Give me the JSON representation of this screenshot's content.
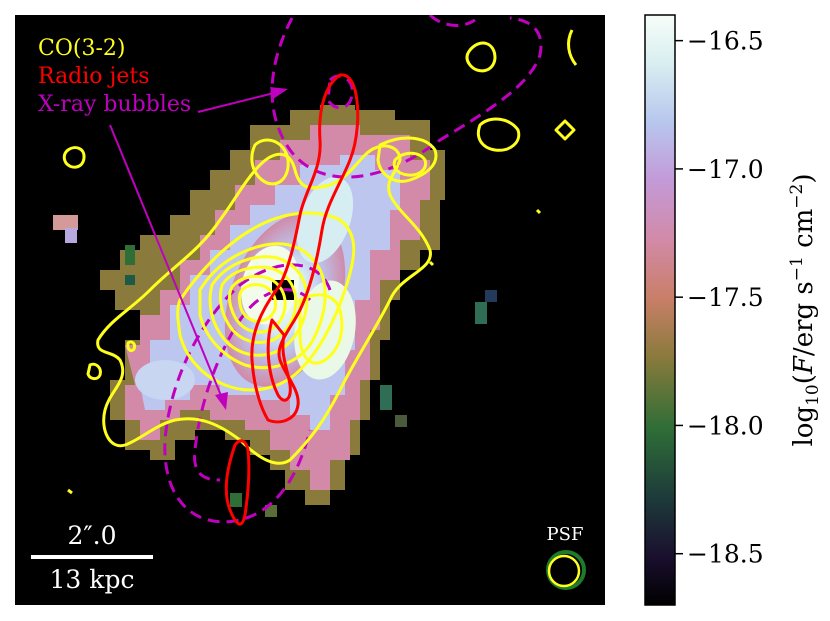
{
  "legend": {
    "co": {
      "label": "CO(3-2)",
      "color": "#ffff1e"
    },
    "radio": {
      "label": "Radio jets",
      "color": "#ff0000"
    },
    "xray": {
      "label": "X-ray bubbles",
      "color": "#bf00bf"
    }
  },
  "scalebar": {
    "angular": "2″.0",
    "physical": "13 kpc"
  },
  "psf_label": "PSF",
  "colorbar": {
    "label": "log10(F/erg s^-1 cm^-2)",
    "label_parts": {
      "base": "log",
      "sub": "10",
      "open": "(",
      "F": "F",
      "unit": "/erg s",
      "exp1": "−1",
      "unit2": " cm",
      "exp2": "−2",
      "close": ")"
    },
    "ticks": [
      "−16.5",
      "−17.0",
      "−17.5",
      "−18.0",
      "−18.5"
    ]
  },
  "chart_data": {
    "type": "heatmap",
    "colormap": "cubehelix",
    "colorbar_range": [
      -18.7,
      -16.4
    ],
    "colorbar_ticks": [
      -16.5,
      -17.0,
      -17.5,
      -18.0,
      -18.5
    ],
    "overlays": [
      "CO(3-2) contours",
      "Radio jets contours",
      "X-ray bubbles outline"
    ]
  }
}
